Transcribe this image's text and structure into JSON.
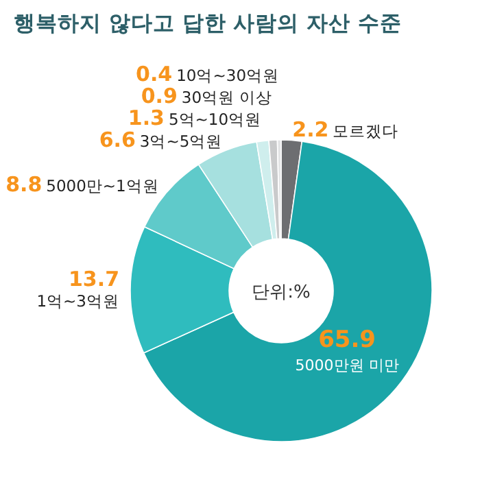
{
  "chart_data": {
    "type": "donut",
    "title": "행복하지 않다고 답한 사람의 자산 수준",
    "annotations": [
      "단위:%"
    ],
    "categories": [
      "모르겠다",
      "5000만원 미만",
      "1억~3억원",
      "5000만~1억원",
      "3억~5억원",
      "5억~10억원",
      "30억원 이상",
      "10억~30억원"
    ],
    "values": [
      2.2,
      65.9,
      13.7,
      8.8,
      6.6,
      1.3,
      0.9,
      0.4
    ],
    "colors": [
      "#6d6e71",
      "#1ba5a8",
      "#2fbcbe",
      "#5fcaca",
      "#a6e0df",
      "#cfeeed",
      "#c9cacb",
      "#e3e4e5"
    ],
    "data_labels": true
  }
}
